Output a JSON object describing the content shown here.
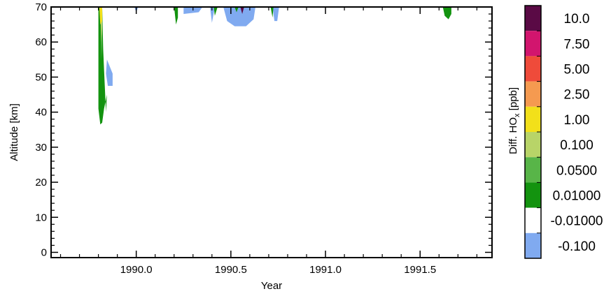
{
  "chart_data": {
    "type": "heatmap",
    "title": "",
    "xlabel": "Year",
    "ylabel": "Altitude [km]",
    "xlim": [
      1989.55,
      1991.88
    ],
    "ylim": [
      -1.5,
      70
    ],
    "x_ticks": [
      1990.0,
      1990.5,
      1991.0,
      1991.5
    ],
    "x_tick_labels": [
      "1990.0",
      "1990.5",
      "1991.0",
      "1991.5"
    ],
    "y_ticks": [
      0,
      10,
      20,
      30,
      40,
      50,
      60,
      70
    ],
    "y_tick_labels": [
      "0",
      "10",
      "20",
      "30",
      "40",
      "50",
      "60",
      "70"
    ],
    "grid": false,
    "colorbar": {
      "label_prefix": "Diff. HO",
      "label_sub": "x",
      "label_suffix": " [ppb]",
      "levels": [
        {
          "label": "10.0",
          "color": "#5a0a45"
        },
        {
          "label": "7.50",
          "color": "#d2156e"
        },
        {
          "label": "5.00",
          "color": "#ef4b3a"
        },
        {
          "label": "2.50",
          "color": "#f59a50"
        },
        {
          "label": "1.00",
          "color": "#f2e01a"
        },
        {
          "label": "0.100",
          "color": "#b8d468"
        },
        {
          "label": "0.0500",
          "color": "#58b548"
        },
        {
          "label": "0.01000",
          "color": "#13930f"
        },
        {
          "label": "-0.01000",
          "color": "#ffffff"
        },
        {
          "label": "-0.100",
          "color": "#80aaf0"
        }
      ]
    },
    "regions": [
      {
        "level": "-0.100",
        "points": [
          [
            1990.25,
            70
          ],
          [
            1990.25,
            68
          ],
          [
            1990.33,
            68.5
          ],
          [
            1990.35,
            70
          ]
        ]
      },
      {
        "level": "-0.100",
        "points": [
          [
            1989.99,
            70
          ],
          [
            1990.0,
            68.5
          ],
          [
            1990.01,
            70
          ]
        ]
      },
      {
        "level": "-0.100",
        "points": [
          [
            1990.39,
            70
          ],
          [
            1990.4,
            65.5
          ],
          [
            1990.415,
            70
          ]
        ]
      },
      {
        "level": "-0.100",
        "points": [
          [
            1990.46,
            70
          ],
          [
            1990.48,
            66
          ],
          [
            1990.52,
            64.5
          ],
          [
            1990.58,
            64.5
          ],
          [
            1990.62,
            66.5
          ],
          [
            1990.63,
            70
          ]
        ]
      },
      {
        "level": "-0.100",
        "points": [
          [
            1990.72,
            70
          ],
          [
            1990.73,
            66
          ],
          [
            1990.745,
            66
          ],
          [
            1990.755,
            70
          ]
        ]
      },
      {
        "level": "-0.100",
        "points": [
          [
            1989.845,
            55
          ],
          [
            1989.875,
            51
          ],
          [
            1989.875,
            47.5
          ],
          [
            1989.85,
            47.5
          ],
          [
            1989.84,
            51
          ]
        ]
      },
      {
        "level": "0.01000",
        "points": [
          [
            1989.8,
            70
          ],
          [
            1989.8,
            41
          ],
          [
            1989.81,
            36.5
          ],
          [
            1989.82,
            37
          ],
          [
            1989.83,
            41
          ],
          [
            1989.845,
            45
          ],
          [
            1989.84,
            40
          ],
          [
            1989.83,
            52
          ],
          [
            1989.825,
            58
          ],
          [
            1989.82,
            70
          ]
        ]
      },
      {
        "level": "0.01000",
        "points": [
          [
            1990.2,
            70
          ],
          [
            1990.21,
            65
          ],
          [
            1990.22,
            67
          ],
          [
            1990.22,
            70
          ]
        ]
      },
      {
        "level": "0.01000",
        "points": [
          [
            1990.41,
            70
          ],
          [
            1990.415,
            67.5
          ],
          [
            1990.43,
            70
          ]
        ]
      },
      {
        "level": "0.01000",
        "points": [
          [
            1990.52,
            70
          ],
          [
            1990.53,
            68.5
          ],
          [
            1990.54,
            70
          ]
        ]
      },
      {
        "level": "0.01000",
        "points": [
          [
            1990.71,
            70
          ],
          [
            1990.72,
            67
          ],
          [
            1990.725,
            70
          ]
        ]
      },
      {
        "level": "0.01000",
        "points": [
          [
            1991.62,
            70
          ],
          [
            1991.63,
            67.5
          ],
          [
            1991.65,
            66.5
          ],
          [
            1991.665,
            68
          ],
          [
            1991.665,
            70
          ]
        ]
      },
      {
        "level": "0.0500",
        "points": [
          [
            1989.81,
            70
          ],
          [
            1989.815,
            55
          ],
          [
            1989.82,
            60
          ],
          [
            1989.82,
            70
          ]
        ]
      },
      {
        "level": "0.100",
        "points": [
          [
            1989.81,
            70
          ],
          [
            1989.815,
            60
          ],
          [
            1989.82,
            64
          ],
          [
            1989.82,
            70
          ]
        ]
      },
      {
        "level": "1.00",
        "points": [
          [
            1989.805,
            70
          ],
          [
            1989.81,
            65
          ],
          [
            1989.82,
            66
          ],
          [
            1989.82,
            70
          ]
        ]
      },
      {
        "level": "10.0",
        "points": [
          [
            1990.55,
            70
          ],
          [
            1990.56,
            68
          ],
          [
            1990.57,
            70
          ]
        ]
      }
    ]
  }
}
